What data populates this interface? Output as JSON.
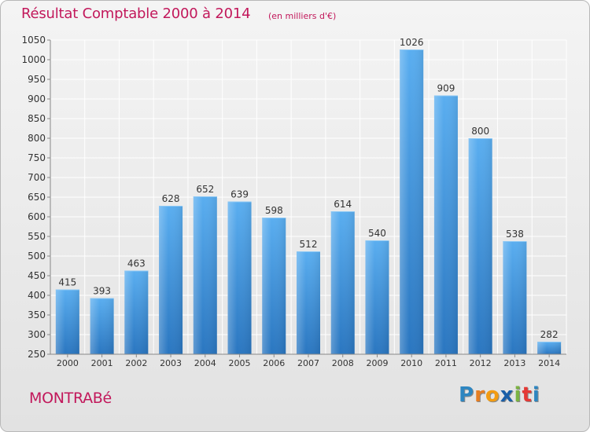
{
  "header": {
    "title": "Résultat Comptable 2000 à 2014",
    "subtitle": "(en milliers d'€)"
  },
  "footer": {
    "town": "MONTRABé",
    "logo_letters": [
      "P",
      "r",
      "o",
      "x",
      "i",
      "t",
      "i"
    ],
    "logo_colors": [
      "#2e86c1",
      "#e67e22",
      "#f39c12",
      "#1a5fa8",
      "#7cb342",
      "#e53935",
      "#2e86c1"
    ]
  },
  "chart_data": {
    "type": "bar",
    "title": "Résultat Comptable 2000 à 2014",
    "subtitle": "(en milliers d'€)",
    "categories": [
      "2000",
      "2001",
      "2002",
      "2003",
      "2004",
      "2005",
      "2006",
      "2007",
      "2008",
      "2009",
      "2010",
      "2011",
      "2012",
      "2013",
      "2014"
    ],
    "values": [
      415,
      393,
      463,
      628,
      652,
      639,
      598,
      512,
      614,
      540,
      1026,
      909,
      800,
      538,
      282
    ],
    "yticks": [
      250,
      300,
      350,
      400,
      450,
      500,
      550,
      600,
      650,
      700,
      750,
      800,
      850,
      900,
      950,
      1000,
      1050
    ],
    "ylim": [
      250,
      1050
    ],
    "xlabel": "",
    "ylabel": "",
    "grid": true,
    "bar_color": "#3d93d8",
    "grid_color": "#ffffff"
  }
}
